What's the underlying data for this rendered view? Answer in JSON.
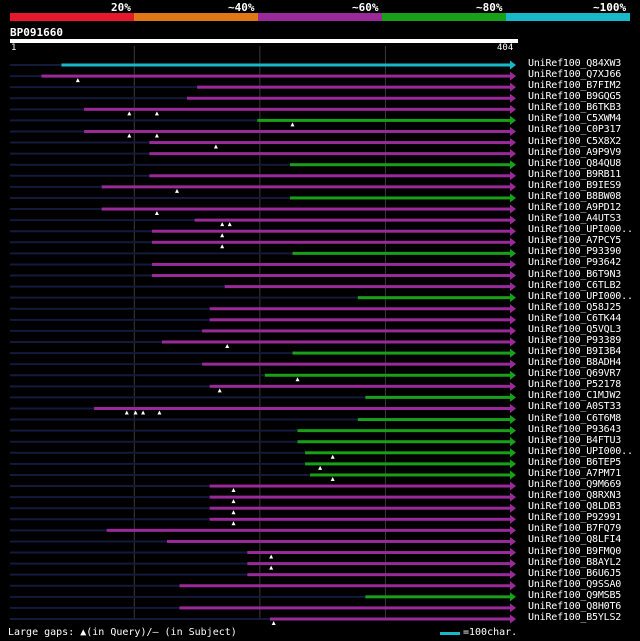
{
  "legend": {
    "items": [
      {
        "label": "20%",
        "color": "#e8182c"
      },
      {
        "label": "~40%",
        "color": "#e07818"
      },
      {
        "label": "~60%",
        "color": "#9a2a9a"
      },
      {
        "label": "~80%",
        "color": "#18a018"
      },
      {
        "label": "~100%",
        "color": "#18b8c8"
      }
    ]
  },
  "query": {
    "id": "BP091660",
    "start": "1",
    "end": "404",
    "length": 404
  },
  "chart_data": {
    "type": "alignment-overview",
    "x_range": [
      1,
      404
    ],
    "gridlines": [
      100,
      200,
      300
    ],
    "hits": [
      {
        "name": "UniRef100_Q84XW3",
        "start": 42,
        "end": 404,
        "identity": "~100%",
        "gaps": []
      },
      {
        "name": "UniRef100_Q7XJ66",
        "start": 26,
        "end": 404,
        "identity": "~60%",
        "gaps": [
          55
        ]
      },
      {
        "name": "UniRef100_B7FIM2",
        "start": 150,
        "end": 404,
        "identity": "~60%",
        "gaps": []
      },
      {
        "name": "UniRef100_B9GQG5",
        "start": 142,
        "end": 404,
        "identity": "~60%",
        "gaps": []
      },
      {
        "name": "UniRef100_B6TKB3",
        "start": 60,
        "end": 404,
        "identity": "~60%",
        "gaps": [
          96,
          118
        ]
      },
      {
        "name": "UniRef100_C5XWM4",
        "start": 198,
        "end": 404,
        "identity": "~80%",
        "gaps": [
          226
        ]
      },
      {
        "name": "UniRef100_C0P317",
        "start": 60,
        "end": 404,
        "identity": "~60%",
        "gaps": [
          96,
          118
        ]
      },
      {
        "name": "UniRef100_C5X8X2",
        "start": 112,
        "end": 404,
        "identity": "~60%",
        "gaps": [
          165
        ]
      },
      {
        "name": "UniRef100_A9P9V9",
        "start": 112,
        "end": 404,
        "identity": "~60%",
        "gaps": []
      },
      {
        "name": "UniRef100_Q84QU8",
        "start": 224,
        "end": 404,
        "identity": "~80%",
        "gaps": []
      },
      {
        "name": "UniRef100_B9RB11",
        "start": 112,
        "end": 404,
        "identity": "~60%",
        "gaps": []
      },
      {
        "name": "UniRef100_B9IES9",
        "start": 74,
        "end": 404,
        "identity": "~60%",
        "gaps": [
          134
        ]
      },
      {
        "name": "UniRef100_B8BW08",
        "start": 224,
        "end": 404,
        "identity": "~80%",
        "gaps": []
      },
      {
        "name": "UniRef100_A9PD12",
        "start": 74,
        "end": 404,
        "identity": "~60%",
        "gaps": [
          118
        ]
      },
      {
        "name": "UniRef100_A4UTS3",
        "start": 148,
        "end": 404,
        "identity": "~60%",
        "gaps": [
          170,
          176
        ]
      },
      {
        "name": "UniRef100_UPI000..",
        "start": 114,
        "end": 404,
        "identity": "~60%",
        "gaps": [
          170
        ]
      },
      {
        "name": "UniRef100_A7PCY5",
        "start": 114,
        "end": 404,
        "identity": "~60%",
        "gaps": [
          170
        ]
      },
      {
        "name": "UniRef100_P93390",
        "start": 226,
        "end": 404,
        "identity": "~80%",
        "gaps": []
      },
      {
        "name": "UniRef100_P93642",
        "start": 114,
        "end": 404,
        "identity": "~60%",
        "gaps": []
      },
      {
        "name": "UniRef100_B6T9N3",
        "start": 114,
        "end": 404,
        "identity": "~60%",
        "gaps": []
      },
      {
        "name": "UniRef100_C6TLB2",
        "start": 172,
        "end": 404,
        "identity": "~60%",
        "gaps": []
      },
      {
        "name": "UniRef100_UPI000..",
        "start": 278,
        "end": 404,
        "identity": "~80%",
        "gaps": []
      },
      {
        "name": "UniRef100_Q58J25",
        "start": 160,
        "end": 404,
        "identity": "~60%",
        "gaps": []
      },
      {
        "name": "UniRef100_C6TK44",
        "start": 160,
        "end": 404,
        "identity": "~60%",
        "gaps": []
      },
      {
        "name": "UniRef100_Q5VQL3",
        "start": 154,
        "end": 404,
        "identity": "~60%",
        "gaps": []
      },
      {
        "name": "UniRef100_P93389",
        "start": 122,
        "end": 404,
        "identity": "~60%",
        "gaps": [
          174
        ]
      },
      {
        "name": "UniRef100_B9I3B4",
        "start": 226,
        "end": 404,
        "identity": "~80%",
        "gaps": []
      },
      {
        "name": "UniRef100_B8ADH4",
        "start": 154,
        "end": 404,
        "identity": "~60%",
        "gaps": []
      },
      {
        "name": "UniRef100_Q69VR7",
        "start": 204,
        "end": 404,
        "identity": "~80%",
        "gaps": [
          230
        ]
      },
      {
        "name": "UniRef100_P52178",
        "start": 160,
        "end": 404,
        "identity": "~60%",
        "gaps": [
          168
        ]
      },
      {
        "name": "UniRef100_C1MJW2",
        "start": 284,
        "end": 404,
        "identity": "~80%",
        "gaps": []
      },
      {
        "name": "UniRef100_A0ST33",
        "start": 68,
        "end": 404,
        "identity": "~60%",
        "gaps": [
          94,
          101,
          107,
          120
        ]
      },
      {
        "name": "UniRef100_C6T6M8",
        "start": 278,
        "end": 404,
        "identity": "~80%",
        "gaps": []
      },
      {
        "name": "UniRef100_P93643",
        "start": 230,
        "end": 404,
        "identity": "~80%",
        "gaps": []
      },
      {
        "name": "UniRef100_B4FTU3",
        "start": 230,
        "end": 404,
        "identity": "~80%",
        "gaps": []
      },
      {
        "name": "UniRef100_UPI000..",
        "start": 236,
        "end": 404,
        "identity": "~80%",
        "gaps": [
          258
        ]
      },
      {
        "name": "UniRef100_B6TEP5",
        "start": 236,
        "end": 404,
        "identity": "~80%",
        "gaps": [
          248
        ]
      },
      {
        "name": "UniRef100_A7PM71",
        "start": 240,
        "end": 404,
        "identity": "~80%",
        "gaps": [
          258
        ]
      },
      {
        "name": "UniRef100_Q9M669",
        "start": 160,
        "end": 404,
        "identity": "~60%",
        "gaps": [
          179
        ]
      },
      {
        "name": "UniRef100_Q8RXN3",
        "start": 160,
        "end": 404,
        "identity": "~60%",
        "gaps": [
          179
        ]
      },
      {
        "name": "UniRef100_Q8LDB3",
        "start": 160,
        "end": 404,
        "identity": "~60%",
        "gaps": [
          179
        ]
      },
      {
        "name": "UniRef100_P92991",
        "start": 160,
        "end": 404,
        "identity": "~60%",
        "gaps": [
          179
        ]
      },
      {
        "name": "UniRef100_B7FQ79",
        "start": 78,
        "end": 404,
        "identity": "~60%",
        "gaps": []
      },
      {
        "name": "UniRef100_Q8LFI4",
        "start": 126,
        "end": 404,
        "identity": "~60%",
        "gaps": []
      },
      {
        "name": "UniRef100_B9FMQ0",
        "start": 190,
        "end": 404,
        "identity": "~60%",
        "gaps": [
          209
        ]
      },
      {
        "name": "UniRef100_B8AYL2",
        "start": 190,
        "end": 404,
        "identity": "~60%",
        "gaps": [
          209
        ]
      },
      {
        "name": "UniRef100_B6U6J5",
        "start": 190,
        "end": 404,
        "identity": "~60%",
        "gaps": []
      },
      {
        "name": "UniRef100_Q9SSA0",
        "start": 136,
        "end": 404,
        "identity": "~60%",
        "gaps": []
      },
      {
        "name": "UniRef100_Q9MSB5",
        "start": 284,
        "end": 404,
        "identity": "~80%",
        "gaps": []
      },
      {
        "name": "UniRef100_Q8H0T6",
        "start": 136,
        "end": 404,
        "identity": "~60%",
        "gaps": []
      },
      {
        "name": "UniRef100_B5YLS2",
        "start": 208,
        "end": 404,
        "identity": "~60%",
        "gaps": [
          211
        ]
      }
    ]
  },
  "footer": {
    "gaps_note": "Large gaps: ▲(in Query)/— (in Subject)",
    "scale_label": "=100char.",
    "scale_color": "#18b8c8"
  }
}
